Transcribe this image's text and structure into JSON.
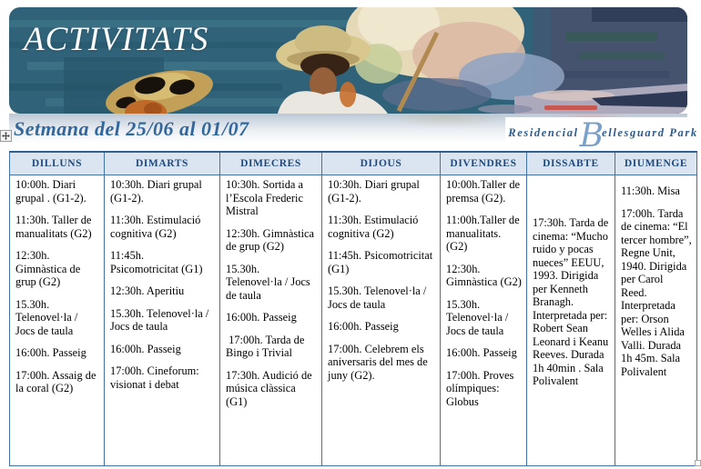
{
  "banner": {
    "title": "ACTIVITATS"
  },
  "subtitle": "Setmana del 25/06 al 01/07",
  "logo": {
    "prefix": "Residencial",
    "initial": "B",
    "rest": "ellesguard Park"
  },
  "colors": {
    "subtitle_blue": "#31679c",
    "logo_blue": "#2b5c91",
    "logo_light_blue": "#7ba0c9",
    "header_bg": "#dbe5f1",
    "header_text": "#1f497d",
    "border_blue": "#4373a6",
    "border_dark": "#2f5f93"
  },
  "schedule": {
    "days": [
      {
        "label": "DILLUNS",
        "items": [
          {
            "text": "10:00h. Diari grupal . (G1-2)."
          },
          {
            "text": "11:30h. Taller de manualitats (G2)"
          },
          {
            "text": "12:30h. Gimnàstica de grup (G2)",
            "gap": "small"
          },
          {
            "text": "15.30h. Telenovel·la / Jocs de taula"
          },
          {
            "text": "16:00h. Passeig"
          },
          {
            "text": "17:00h. Assaig de la coral (G2)"
          }
        ]
      },
      {
        "label": "DIMARTS",
        "items": [
          {
            "text": "10:30h. Diari grupal (G1-2)."
          },
          {
            "text": "11:30h. Estimulació cognitiva (G2)"
          },
          {
            "text": "11:45h. Psicomotricitat (G1)",
            "gap": "small"
          },
          {
            "text": "12:30h. Aperitiu",
            "gap": "small"
          },
          {
            "text": "15.30h. Telenovel·la / Jocs de taula"
          },
          {
            "text": "16:00h. Passeig"
          },
          {
            "text": "17:00h. Cineforum: visionat i debat"
          }
        ]
      },
      {
        "label": "DIMECRES",
        "items": [
          {
            "text": "10:30h. Sortida a l’Escola Frederic Mistral"
          },
          {
            "text": "12:30h. Gimnàstica de grup (G2)",
            "gap": "small"
          },
          {
            "text": "15.30h. Telenovel·la / Jocs de taula"
          },
          {
            "text": "16:00h. Passeig"
          },
          {
            "text": " 17:00h. Tarda de Bingo i Trivial",
            "gap": "small"
          },
          {
            "text": "17:30h. Audició de música clàssica (G1)",
            "gap": "small"
          }
        ]
      },
      {
        "label": "DIJOUS",
        "items": [
          {
            "text": "10:30h. Diari grupal (G1-2)."
          },
          {
            "text": "11:30h. Estimulació cognitiva (G2)"
          },
          {
            "text": "11:45h. Psicomotricitat (G1)",
            "gap": "small"
          },
          {
            "text": "15.30h. Telenovel·la / Jocs de taula"
          },
          {
            "text": "16:00h. Passeig"
          },
          {
            "text": "17:00h. Celebrem els aniversaris del mes de juny (G2).",
            "gap": "small"
          }
        ]
      },
      {
        "label": "DIVENDRES",
        "items": [
          {
            "text": "10:00h.Taller de premsa (G2)."
          },
          {
            "text": "11:00h.Taller de manualitats. (G2)"
          },
          {
            "text": "12:30h. Gimnàstica (G2)",
            "gap": "small"
          },
          {
            "text": "15.30h. Telenovel·la / Jocs de taula"
          },
          {
            "text": "16:00h. Passeig"
          },
          {
            "text": "17:00h. Proves olímpiques: Globus"
          }
        ]
      },
      {
        "label": "DISSABTE",
        "items": [
          {
            "text": "17:30h. Tarda de cinema: “Mucho ruido y pocas nueces” EEUU, 1993. Dirigida per Kenneth Branagh. Interpretada per: Robert Sean Leonard i Keanu Reeves. Durada 1h 40min . Sala Polivalent",
            "gap": "large"
          }
        ]
      },
      {
        "label": "DIUMENGE",
        "items": [
          {
            "text": "11:30h. Misa",
            "gap": "small"
          },
          {
            "text": "17:00h. Tarda de cinema: “El tercer hombre”, Regne Unit, 1940. Dirigida per Carol Reed. Interpretada per: Orson Welles i Alida Valli. Durada 1h 45m. Sala Polivalent",
            "gap": "small"
          }
        ]
      }
    ]
  }
}
